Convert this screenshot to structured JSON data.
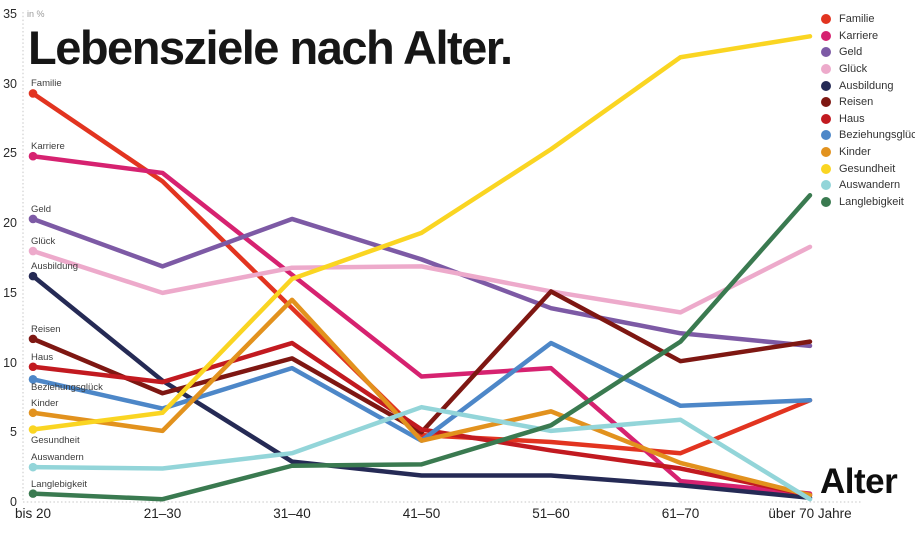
{
  "title": "Lebensziele nach Alter.",
  "y_axis": {
    "unit_label": "in %",
    "ticks": [
      0,
      5,
      10,
      15,
      20,
      25,
      30,
      35
    ]
  },
  "x_axis": {
    "title": "Alter",
    "categories": [
      "bis 20",
      "21–30",
      "31–40",
      "41–50",
      "51–60",
      "61–70",
      "über 70 Jahre"
    ]
  },
  "chart_data": {
    "type": "line",
    "title": "Lebensziele nach Alter.",
    "xlabel": "Alter",
    "ylabel": "in %",
    "ylim": [
      0,
      35
    ],
    "grid": false,
    "legend_position": "top-right",
    "categories": [
      "bis 20",
      "21–30",
      "31–40",
      "41–50",
      "51–60",
      "61–70",
      "über 70 Jahre"
    ],
    "series": [
      {
        "name": "Familie",
        "color": "#e23420",
        "label_pos": "above",
        "values": [
          29.3,
          23.0,
          13.9,
          4.8,
          4.3,
          3.5,
          7.3
        ]
      },
      {
        "name": "Karriere",
        "color": "#d62270",
        "label_pos": "above",
        "values": [
          24.8,
          23.6,
          16.3,
          9.0,
          9.6,
          1.5,
          0.6
        ]
      },
      {
        "name": "Geld",
        "color": "#7d5aa5",
        "label_pos": "above",
        "values": [
          20.3,
          16.9,
          20.3,
          17.4,
          13.9,
          12.1,
          11.2
        ]
      },
      {
        "name": "Glück",
        "color": "#edaacb",
        "label_pos": "above",
        "values": [
          18.0,
          15.0,
          16.8,
          16.9,
          15.1,
          13.6,
          18.3
        ]
      },
      {
        "name": "Ausbildung",
        "color": "#252a55",
        "label_pos": "above",
        "values": [
          16.2,
          8.7,
          2.9,
          1.9,
          1.9,
          1.2,
          0.3
        ]
      },
      {
        "name": "Reisen",
        "color": "#7e1712",
        "label_pos": "above",
        "values": [
          11.7,
          7.8,
          10.3,
          5.0,
          15.1,
          10.1,
          11.5
        ]
      },
      {
        "name": "Haus",
        "color": "#c21a20",
        "label_pos": "above",
        "values": [
          9.7,
          8.6,
          11.4,
          5.2,
          3.7,
          2.4,
          0.5
        ]
      },
      {
        "name": "Beziehungsglück",
        "color": "#4d87c8",
        "label_pos": "on",
        "values": [
          8.8,
          6.7,
          9.6,
          4.4,
          11.4,
          6.9,
          7.3
        ]
      },
      {
        "name": "Kinder",
        "color": "#e2921e",
        "label_pos": "above",
        "values": [
          6.4,
          5.1,
          14.5,
          4.4,
          6.5,
          2.8,
          0.5
        ]
      },
      {
        "name": "Gesundheit",
        "color": "#fad522",
        "label_pos": "below",
        "values": [
          5.2,
          6.4,
          16.0,
          19.3,
          25.3,
          31.9,
          33.4
        ]
      },
      {
        "name": "Auswandern",
        "color": "#93d5d9",
        "label_pos": "above",
        "values": [
          2.5,
          2.4,
          3.5,
          6.8,
          5.1,
          5.9,
          0.2
        ]
      },
      {
        "name": "Langlebigkeit",
        "color": "#3a7a50",
        "label_pos": "above",
        "values": [
          0.6,
          0.2,
          2.6,
          2.7,
          5.5,
          11.5,
          22.0
        ]
      }
    ]
  }
}
